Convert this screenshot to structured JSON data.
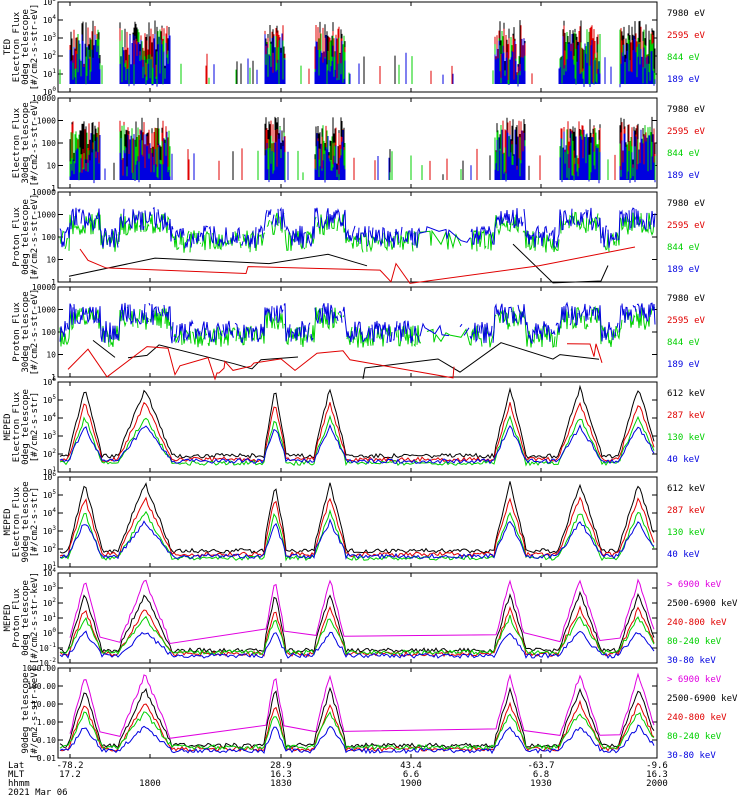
{
  "chart_data": {
    "type": "line",
    "time_axis": {
      "tick_labels": [
        "1800",
        "1830",
        "1900",
        "1930",
        "2000"
      ],
      "lat_label": "Lat",
      "mlt_label": "MLT",
      "hhmm_label": "hhmm",
      "date": "2021 Mar 06",
      "ticks": [
        {
          "lat": "-78.2",
          "mlt": "17.2",
          "hhmm": ""
        },
        {
          "lat": "",
          "mlt": "",
          "hhmm": "1800"
        },
        {
          "lat": "28.9",
          "mlt": "16.3",
          "hhmm": "1830"
        },
        {
          "lat": "43.4",
          "mlt": "6.6",
          "hhmm": "1900"
        },
        {
          "lat": "-63.7",
          "mlt": "6.8",
          "hhmm": "1930"
        },
        {
          "lat": "-9.6",
          "mlt": "16.3",
          "hhmm": "2000"
        }
      ]
    },
    "panels": [
      {
        "ylabel": [
          "TED",
          "Electron Flux",
          "0deg telescope",
          "[#/cm2-s-str-eV]"
        ],
        "yticks": [
          "10^0",
          "10^1",
          "10^2",
          "10^3",
          "10^4",
          "10^5"
        ],
        "legend": [
          {
            "label": "7980 eV",
            "color": "#000000"
          },
          {
            "label": "2595 eV",
            "color": "#e00000"
          },
          {
            "label": "844 eV",
            "color": "#00d000"
          },
          {
            "label": "189 eV",
            "color": "#0000e0"
          }
        ]
      },
      {
        "ylabel": [
          "",
          "Electron Flux",
          "30deg telescope",
          "[#/cm2-s-str-eV]"
        ],
        "yticks": [
          "1",
          "10",
          "100",
          "1000",
          "10000"
        ],
        "legend": [
          {
            "label": "7980 eV",
            "color": "#000000"
          },
          {
            "label": "2595 eV",
            "color": "#e00000"
          },
          {
            "label": "844 eV",
            "color": "#00d000"
          },
          {
            "label": "189 eV",
            "color": "#0000e0"
          }
        ]
      },
      {
        "ylabel": [
          "",
          "Proton Flux",
          "0deg telescope",
          "[#/cm2-s-str-eV]"
        ],
        "yticks": [
          "1",
          "10",
          "100",
          "1000",
          "10000"
        ],
        "legend": [
          {
            "label": "7980 eV",
            "color": "#000000"
          },
          {
            "label": "2595 eV",
            "color": "#e00000"
          },
          {
            "label": "844 eV",
            "color": "#00d000"
          },
          {
            "label": "189 eV",
            "color": "#0000e0"
          }
        ]
      },
      {
        "ylabel": [
          "",
          "Proton Flux",
          "30deg telescope",
          "[#/cm2-s-str-eV]"
        ],
        "yticks": [
          "1",
          "10",
          "100",
          "1000",
          "10000"
        ],
        "legend": [
          {
            "label": "7980 eV",
            "color": "#000000"
          },
          {
            "label": "2595 eV",
            "color": "#e00000"
          },
          {
            "label": "844 eV",
            "color": "#00d000"
          },
          {
            "label": "189 eV",
            "color": "#0000e0"
          }
        ]
      },
      {
        "ylabel": [
          "MEPED",
          "Electron Flux",
          "0deg telescope",
          "[#/cm2-s-str]"
        ],
        "yticks": [
          "10^1",
          "10^2",
          "10^3",
          "10^4",
          "10^5",
          "10^6"
        ],
        "legend": [
          {
            "label": "612 keV",
            "color": "#000000"
          },
          {
            "label": "287 keV",
            "color": "#e00000"
          },
          {
            "label": "130 keV",
            "color": "#00d000"
          },
          {
            "label": "40 keV",
            "color": "#0000e0"
          }
        ]
      },
      {
        "ylabel": [
          "MEPED",
          "Electron Flux",
          "90deg telescope",
          "[#/cm2-s-str]"
        ],
        "yticks": [
          "10^1",
          "10^2",
          "10^3",
          "10^4",
          "10^5",
          "10^6"
        ],
        "legend": [
          {
            "label": "612 keV",
            "color": "#000000"
          },
          {
            "label": "287 keV",
            "color": "#e00000"
          },
          {
            "label": "130 keV",
            "color": "#00d000"
          },
          {
            "label": "40 keV",
            "color": "#0000e0"
          }
        ]
      },
      {
        "ylabel": [
          "MEPED",
          "Proton Flux",
          "0deg telescope",
          "[#/cm2-s-str-keV]"
        ],
        "yticks": [
          "10^-2",
          "10^-1",
          "10^0",
          "10^1",
          "10^2",
          "10^3",
          "10^4"
        ],
        "legend": [
          {
            "label": "> 6900 keV",
            "color": "#e000e0"
          },
          {
            "label": "2500-6900 keV",
            "color": "#000000"
          },
          {
            "label": "240-800 keV",
            "color": "#e00000"
          },
          {
            "label": "80-240 keV",
            "color": "#00d000"
          },
          {
            "label": "30-80 keV",
            "color": "#0000e0"
          }
        ]
      },
      {
        "ylabel": [
          "",
          "",
          "90deg telescope",
          "[#/cm2-s-str-keV]"
        ],
        "yticks": [
          "0.01",
          "0.10",
          "1.00",
          "10.00",
          "100.00",
          "1000.00"
        ],
        "legend": [
          {
            "label": "> 6900 keV",
            "color": "#e000e0"
          },
          {
            "label": "2500-6900 keV",
            "color": "#000000"
          },
          {
            "label": "240-800 keV",
            "color": "#e00000"
          },
          {
            "label": "80-240 keV",
            "color": "#00d000"
          },
          {
            "label": "30-80 keV",
            "color": "#0000e0"
          }
        ]
      }
    ]
  }
}
